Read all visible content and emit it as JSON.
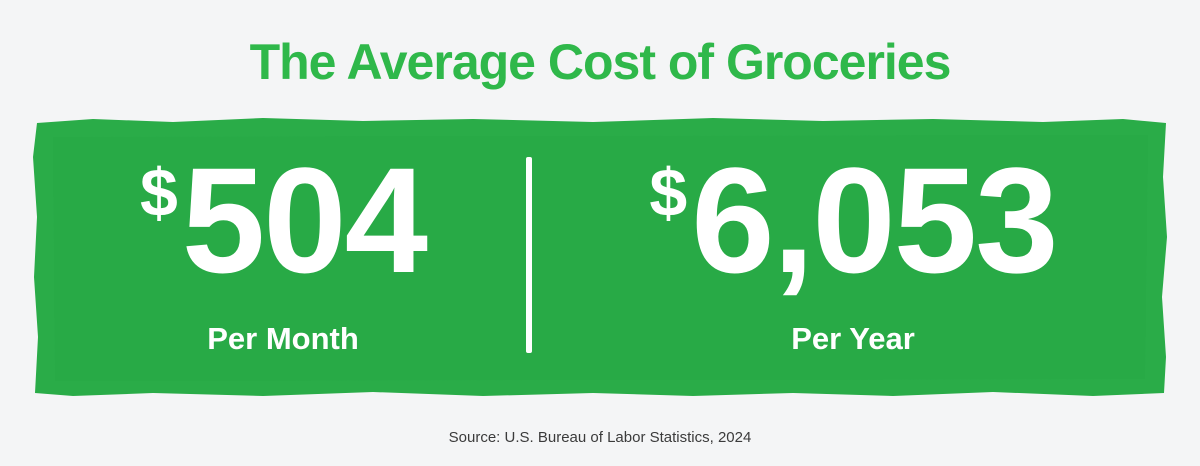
{
  "title": "The Average Cost of Groceries",
  "colors": {
    "accent_green": "#2fb84a",
    "panel_green": "#2aac48",
    "background": "#f4f5f6",
    "text_on_green": "#ffffff"
  },
  "stats": {
    "monthly": {
      "currency": "$",
      "amount": "504",
      "label": "Per Month"
    },
    "yearly": {
      "currency": "$",
      "amount": "6,053",
      "label": "Per Year"
    }
  },
  "source": "Source: U.S. Bureau of Labor Statistics, 2024"
}
